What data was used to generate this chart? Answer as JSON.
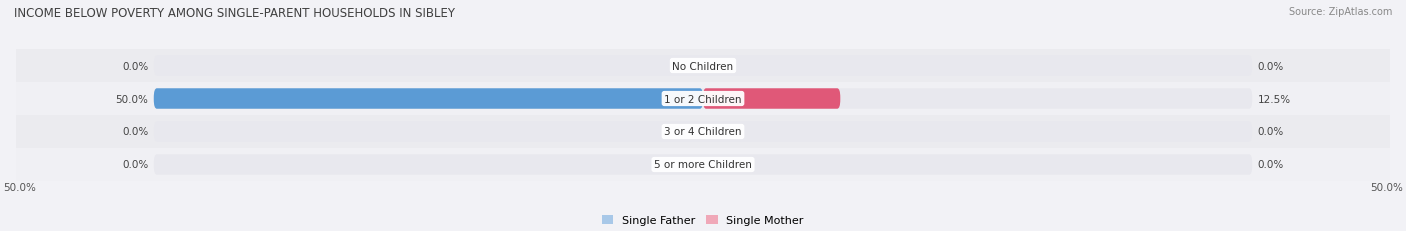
{
  "title": "INCOME BELOW POVERTY AMONG SINGLE-PARENT HOUSEHOLDS IN SIBLEY",
  "source": "Source: ZipAtlas.com",
  "categories": [
    "No Children",
    "1 or 2 Children",
    "3 or 4 Children",
    "5 or more Children"
  ],
  "single_father": [
    0.0,
    50.0,
    0.0,
    0.0
  ],
  "single_mother": [
    0.0,
    12.5,
    0.0,
    0.0
  ],
  "father_color_full": "#5b9bd5",
  "father_color_light": "#a8c8e8",
  "mother_color_full": "#e05878",
  "mother_color_light": "#f0a8b8",
  "bar_bg_color": "#e8e8ee",
  "row_bg_even": "#f5f5f8",
  "row_bg_odd": "#ebebef",
  "max_val": 50.0,
  "legend_father": "Single Father",
  "legend_mother": "Single Mother"
}
